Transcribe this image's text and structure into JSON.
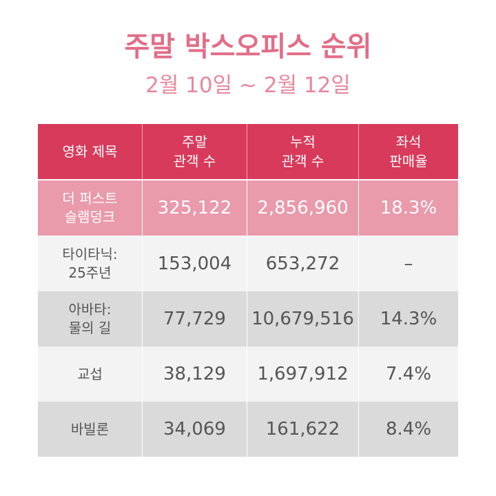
{
  "page": {
    "title": "주말 박스오피스 순위",
    "subtitle": "2월 10일 ~ 2월 12일"
  },
  "table": {
    "headers": [
      "영화 제목",
      "주말\n관객 수",
      "누적\n관객 수",
      "좌석\n판매율"
    ],
    "rows": [
      {
        "title": "더 퍼스트\n슬램덩크",
        "weekend": "325,122",
        "total": "2,856,960",
        "share": "18.3%"
      },
      {
        "title": "타이타닉:\n25주년",
        "weekend": "153,004",
        "total": "653,272",
        "share": "–"
      },
      {
        "title": "아바타:\n물의 길",
        "weekend": "77,729",
        "total": "10,679,516",
        "share": "14.3%"
      },
      {
        "title": "교섭",
        "weekend": "38,129",
        "total": "1,697,912",
        "share": "7.4%"
      },
      {
        "title": "바빌론",
        "weekend": "34,069",
        "total": "161,622",
        "share": "8.4%"
      }
    ]
  },
  "colors": {
    "header": "#d83a5b",
    "highlight_row": "#e99aab",
    "light_row": "#f3f3f3",
    "dark_row": "#dadada",
    "title_text": "#e26d87"
  }
}
